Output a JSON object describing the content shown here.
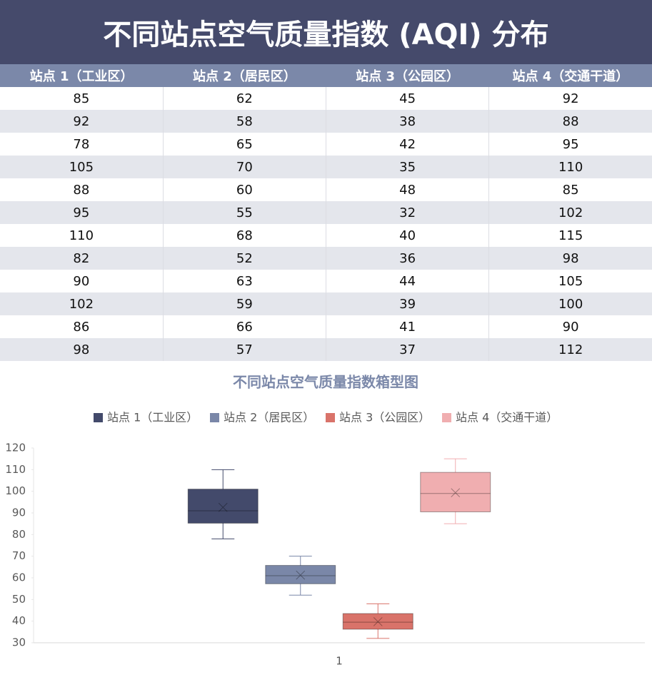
{
  "header": {
    "title": "不同站点空气质量指数 (AQI) 分布"
  },
  "table": {
    "columns": [
      "站点 1（工业区）",
      "站点 2（居民区）",
      "站点 3（公园区）",
      "站点 4（交通干道）"
    ],
    "rows": [
      [
        85,
        62,
        45,
        92
      ],
      [
        92,
        58,
        38,
        88
      ],
      [
        78,
        65,
        42,
        95
      ],
      [
        105,
        70,
        35,
        110
      ],
      [
        88,
        60,
        48,
        85
      ],
      [
        95,
        55,
        32,
        102
      ],
      [
        110,
        68,
        40,
        115
      ],
      [
        82,
        52,
        36,
        98
      ],
      [
        90,
        63,
        44,
        105
      ],
      [
        102,
        59,
        39,
        100
      ],
      [
        86,
        66,
        41,
        90
      ],
      [
        98,
        57,
        37,
        112
      ]
    ]
  },
  "chart_data": {
    "type": "box",
    "title": "不同站点空气质量指数箱型图",
    "categories": [
      "1"
    ],
    "legend": "top",
    "series": [
      {
        "name": "站点 1（工业区）",
        "color": "#434a6b",
        "min": 78,
        "q1": 85.25,
        "median": 91,
        "q3": 101,
        "max": 110,
        "mean": 92.58
      },
      {
        "name": "站点 2（居民区）",
        "color": "#7a87a8",
        "min": 52,
        "q1": 57.25,
        "median": 61,
        "q3": 65.75,
        "max": 70,
        "mean": 61.25
      },
      {
        "name": "站点 3（公园区）",
        "color": "#d9736a",
        "min": 32,
        "q1": 36.25,
        "median": 39.5,
        "q3": 43.5,
        "max": 48,
        "mean": 39.75
      },
      {
        "name": "站点 4（交通干道）",
        "color": "#f0aeb0",
        "min": 85,
        "q1": 90.5,
        "median": 99,
        "q3": 108.75,
        "max": 115,
        "mean": 99.33
      }
    ],
    "ylim": [
      30,
      120
    ],
    "yticks": [
      30,
      40,
      50,
      60,
      70,
      80,
      90,
      100,
      110,
      120
    ]
  }
}
